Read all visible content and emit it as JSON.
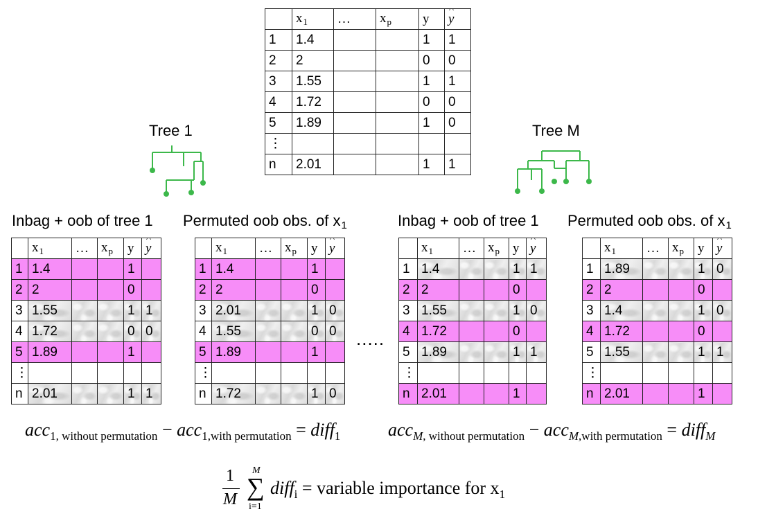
{
  "main_table": {
    "headers": [
      "",
      "x1",
      "…",
      "xp",
      "y",
      "ŷ"
    ],
    "rows": [
      [
        "1",
        "1.4",
        "",
        "",
        "1",
        "1"
      ],
      [
        "2",
        "2",
        "",
        "",
        "0",
        "0"
      ],
      [
        "3",
        "1.55",
        "",
        "",
        "1",
        "1"
      ],
      [
        "4",
        "1.72",
        "",
        "",
        "0",
        "0"
      ],
      [
        "5",
        "1.89",
        "",
        "",
        "1",
        "0"
      ],
      [
        "⋮",
        "",
        "",
        "",
        "",
        ""
      ],
      [
        "n",
        "2.01",
        "",
        "",
        "1",
        "1"
      ]
    ]
  },
  "trees": {
    "tree1_label": "Tree 1",
    "treeM_label": "Tree M",
    "node_color": "#3cb84a"
  },
  "tables": [
    {
      "caption": "Inbag + oob of tree 1",
      "rows": [
        {
          "type": "inbag",
          "cells": [
            "1",
            "1.4",
            "",
            "",
            "1",
            ""
          ]
        },
        {
          "type": "inbag",
          "cells": [
            "2",
            "2",
            "",
            "",
            "0",
            ""
          ]
        },
        {
          "type": "oob",
          "cells": [
            "3",
            "1.55",
            "",
            "",
            "1",
            "1"
          ]
        },
        {
          "type": "oob",
          "cells": [
            "4",
            "1.72",
            "",
            "",
            "0",
            "0"
          ]
        },
        {
          "type": "inbag",
          "cells": [
            "5",
            "1.89",
            "",
            "",
            "1",
            ""
          ]
        },
        {
          "type": "blank",
          "cells": [
            "⋮",
            "",
            "",
            "",
            "",
            ""
          ]
        },
        {
          "type": "oob",
          "cells": [
            "n",
            "2.01",
            "",
            "",
            "1",
            "1"
          ]
        }
      ]
    },
    {
      "caption": "Permuted oob obs. of x",
      "caption_sub": "1",
      "rows": [
        {
          "type": "inbag",
          "cells": [
            "1",
            "1.4",
            "",
            "",
            "1",
            ""
          ]
        },
        {
          "type": "inbag",
          "cells": [
            "2",
            "2",
            "",
            "",
            "0",
            ""
          ]
        },
        {
          "type": "oob",
          "cells": [
            "3",
            "2.01",
            "",
            "",
            "1",
            "0"
          ]
        },
        {
          "type": "oob",
          "cells": [
            "4",
            "1.55",
            "",
            "",
            "0",
            "0"
          ]
        },
        {
          "type": "inbag",
          "cells": [
            "5",
            "1.89",
            "",
            "",
            "1",
            ""
          ]
        },
        {
          "type": "blank",
          "cells": [
            "⋮",
            "",
            "",
            "",
            "",
            ""
          ]
        },
        {
          "type": "oob",
          "cells": [
            "n",
            "1.72",
            "",
            "",
            "1",
            "0"
          ]
        }
      ]
    },
    {
      "caption": "Inbag + oob of tree 1",
      "rows": [
        {
          "type": "oob",
          "cells": [
            "1",
            "1.4",
            "",
            "",
            "1",
            "1"
          ]
        },
        {
          "type": "inbag",
          "cells": [
            "2",
            "2",
            "",
            "",
            "0",
            ""
          ]
        },
        {
          "type": "oob",
          "cells": [
            "3",
            "1.55",
            "",
            "",
            "1",
            "0"
          ]
        },
        {
          "type": "inbag",
          "cells": [
            "4",
            "1.72",
            "",
            "",
            "0",
            ""
          ]
        },
        {
          "type": "oob",
          "cells": [
            "5",
            "1.89",
            "",
            "",
            "1",
            "1"
          ]
        },
        {
          "type": "blank",
          "cells": [
            "⋮",
            "",
            "",
            "",
            "",
            ""
          ]
        },
        {
          "type": "inbag",
          "cells": [
            "n",
            "2.01",
            "",
            "",
            "1",
            ""
          ]
        }
      ]
    },
    {
      "caption": "Permuted oob obs. of x",
      "caption_sub": "1",
      "rows": [
        {
          "type": "oob",
          "cells": [
            "1",
            "1.89",
            "",
            "",
            "1",
            "0"
          ]
        },
        {
          "type": "inbag",
          "cells": [
            "2",
            "2",
            "",
            "",
            "0",
            ""
          ]
        },
        {
          "type": "oob",
          "cells": [
            "3",
            "1.4",
            "",
            "",
            "1",
            "0"
          ]
        },
        {
          "type": "inbag",
          "cells": [
            "4",
            "1.72",
            "",
            "",
            "0",
            ""
          ]
        },
        {
          "type": "oob",
          "cells": [
            "5",
            "1.55",
            "",
            "",
            "1",
            "1"
          ]
        },
        {
          "type": "blank",
          "cells": [
            "⋮",
            "",
            "",
            "",
            "",
            ""
          ]
        },
        {
          "type": "inbag",
          "cells": [
            "n",
            "2.01",
            "",
            "",
            "1",
            ""
          ]
        }
      ]
    }
  ],
  "small_headers": [
    "",
    "x1",
    "…",
    "xp",
    "y",
    "ŷ"
  ],
  "ellipsis": ".....",
  "formulas": {
    "left": {
      "acc": "acc",
      "sub_without": "1, without permutation",
      "minus": "−",
      "sub_with": "1,with permutation",
      "eq": "=",
      "diff": "diff",
      "diff_sub": "1"
    },
    "right": {
      "acc": "acc",
      "sub_without_var": "M",
      "sub_without": ", without permutation",
      "minus": "−",
      "sub_with_var": "M",
      "sub_with": ",with permutation",
      "eq": "=",
      "diff": "diff",
      "diff_sub": "M"
    },
    "bottom": {
      "num": "1",
      "den": "M",
      "sum_top": "M",
      "sum_bottom": "i=1",
      "sigma": "∑",
      "diff": "diff",
      "diff_sub": "i",
      "rhs": "= variable importance for x",
      "rhs_sub": "1"
    }
  }
}
